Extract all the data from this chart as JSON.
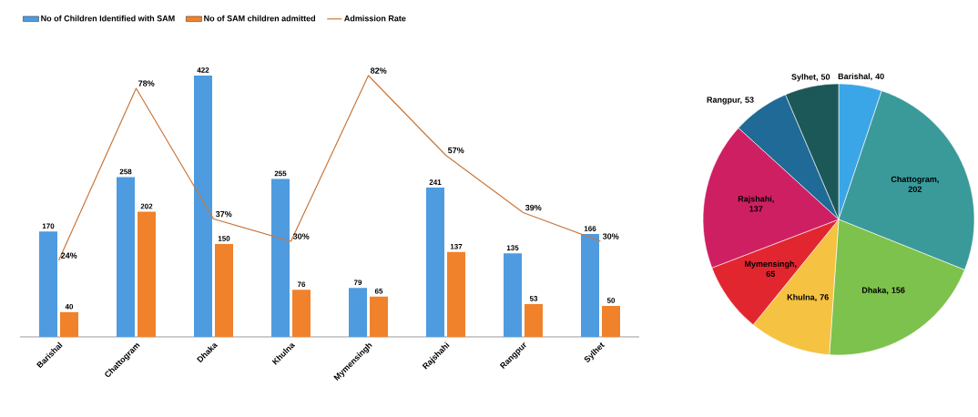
{
  "chart_data": [
    {
      "type": "bar",
      "categories": [
        "Barishal",
        "Chattogram",
        "Dhaka",
        "Khulna",
        "Mymensingh",
        "Rajshahi",
        "Rangpur",
        "Sylhet"
      ],
      "series": [
        {
          "name": "No of Children Identified with SAM",
          "color": "#4f9be0",
          "values": [
            170,
            258,
            422,
            255,
            79,
            241,
            135,
            166
          ]
        },
        {
          "name": "No of SAM children admitted",
          "color": "#f0822c",
          "values": [
            40,
            202,
            150,
            76,
            65,
            137,
            53,
            50
          ]
        },
        {
          "name": "Admission Rate",
          "type": "line",
          "axis": "y2",
          "color": "#c8783c",
          "values": [
            24,
            78,
            37,
            30,
            82,
            57,
            39,
            30
          ],
          "value_labels": [
            "24%",
            "78%",
            "37%",
            "30%",
            "82%",
            "57%",
            "39%",
            "30%"
          ]
        }
      ],
      "data_labels": true,
      "tick_labels": "x",
      "legend": "top left"
    },
    {
      "type": "pie",
      "categories": [
        null,
        null,
        null,
        null,
        null,
        null,
        null,
        null
      ],
      "value_labels": [
        "Barishal, 40",
        "Chattogram, 202",
        "Dhaka, 156",
        "Khulna, 76",
        "Mymensingh, 65",
        "Rajshahi, 137",
        "Rangpur, 53",
        "Sylhet, 50"
      ],
      "values": [
        40,
        202,
        156,
        76,
        65,
        137,
        53,
        50
      ],
      "colors": [
        "#3aa6e8",
        "#3a9a9a",
        "#7dc24c",
        "#f5c242",
        "#e2262f",
        "#cf1f63",
        "#1f6a96",
        "#1d5858"
      ]
    }
  ]
}
